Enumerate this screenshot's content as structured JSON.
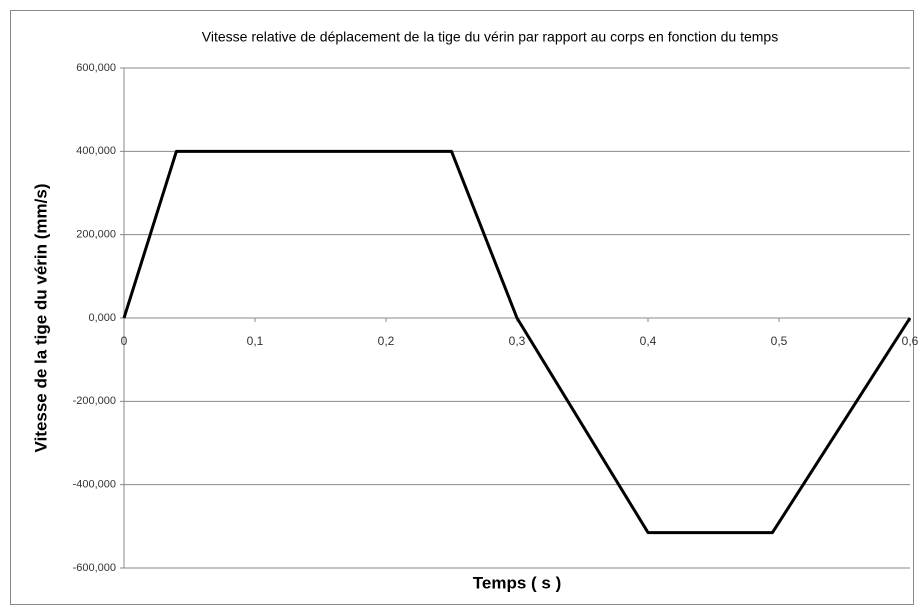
{
  "chart_data": {
    "type": "line",
    "title": "Vitesse relative de déplacement de la tige du vérin par rapport au corps en fonction du temps",
    "x_label": "Temps ( s )",
    "y_label": "Vitesse de la tige du vérin (mm/s)",
    "x": [
      0,
      0.04,
      0.25,
      0.3,
      0.4,
      0.495,
      0.6
    ],
    "series": [
      {
        "color": "#000000",
        "values": [
          0,
          400,
          400,
          0,
          -515,
          -515,
          0
        ]
      }
    ],
    "xlim": [
      0,
      0.6
    ],
    "xticks": [
      0,
      {
        "value": 0.1,
        "label": "0,1"
      },
      {
        "value": 0.2,
        "label": "0,2"
      },
      {
        "value": 0.3,
        "label": "0,3"
      },
      {
        "value": 0.4,
        "label": "0,4"
      },
      {
        "value": 0.5,
        "label": "0,5"
      },
      {
        "value": 0.6,
        "label": "0,6"
      }
    ],
    "ylim": [
      -600,
      600
    ],
    "yticks": [
      {
        "value": -600,
        "label": "-600,000"
      },
      {
        "value": -400,
        "label": "-400,000"
      },
      {
        "value": -200,
        "label": "-200,000"
      },
      {
        "value": 0,
        "label": "0,000"
      },
      {
        "value": 200,
        "label": "200,000"
      },
      {
        "value": 400,
        "label": "400,000"
      },
      {
        "value": 600,
        "label": "600,000"
      }
    ],
    "grid": true
  }
}
